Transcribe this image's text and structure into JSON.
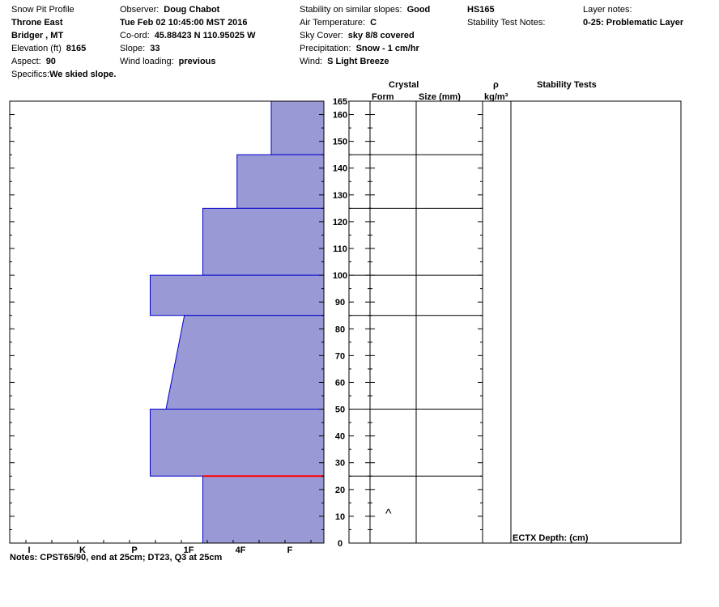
{
  "header": {
    "col1": [
      {
        "label": "Snow Pit Profile",
        "value": ""
      },
      {
        "label": "",
        "value": "Throne East"
      },
      {
        "label": "",
        "value": "Bridger , MT"
      },
      {
        "label": "Elevation (ft)",
        "value": "8165"
      },
      {
        "label": "Aspect:",
        "value": "90"
      },
      {
        "label": "Specifics:",
        "value": "We skied slope."
      }
    ],
    "col2": [
      {
        "label": "Observer:",
        "value": "Doug Chabot"
      },
      {
        "label": "",
        "value": "Tue Feb 02 10:45:00 MST 2016"
      },
      {
        "label": "Co-ord:",
        "value": "45.88423 N 110.95025 W"
      },
      {
        "label": "Slope:",
        "value": "33"
      },
      {
        "label": "Wind loading:",
        "value": "previous"
      }
    ],
    "col3": [
      {
        "label": "Stability on similar slopes:",
        "value": "Good"
      },
      {
        "label": "Air Temperature:",
        "value": "C"
      },
      {
        "label": "Sky Cover:",
        "value": "sky 8/8 covered"
      },
      {
        "label": "Precipitation:",
        "value": "Snow - 1 cm/hr"
      },
      {
        "label": "Wind:",
        "value": "S Light Breeze"
      }
    ],
    "col4": [
      {
        "label": "",
        "value": "HS165"
      },
      {
        "label": "Stability Test Notes:",
        "value": ""
      }
    ],
    "col5": [
      {
        "label": "Layer notes:",
        "value": ""
      },
      {
        "label": "",
        "value": "0-25: Problematic Layer"
      }
    ]
  },
  "columns": {
    "crystal": "Crystal",
    "form": "Form",
    "size": "Size (mm)",
    "rho": "ρ",
    "density_unit": "kg/m³",
    "stability_tests": "Stability Tests"
  },
  "stability_test_entry": "ECTX  Depth: (cm)",
  "crystal_form_symbol": "^",
  "notes": "Notes:  CPST65/90, end at 25cm; DT23, Q3 at 25cm",
  "colors": {
    "hardness_fill": "#9999d6",
    "hardness_edge": "#0000cc",
    "problem_layer": "#ff0000",
    "grid": "#000000"
  },
  "chart_data": {
    "type": "area",
    "title": "",
    "xlabel": "",
    "ylabel": "",
    "y_range": [
      0,
      165
    ],
    "y_ticks": [
      0,
      10,
      20,
      30,
      40,
      50,
      60,
      70,
      80,
      90,
      100,
      110,
      120,
      130,
      140,
      150,
      160,
      165
    ],
    "hardness_scale": [
      "I",
      "K",
      "P",
      "1F",
      "4F",
      "F"
    ],
    "hardness_profile": [
      {
        "bottom": 145,
        "top": 165,
        "hardness_bottom": 1.0,
        "hardness_top": 1.0
      },
      {
        "bottom": 125,
        "top": 145,
        "hardness_bottom": 1.65,
        "hardness_top": 1.65
      },
      {
        "bottom": 100,
        "top": 125,
        "hardness_bottom": 2.3,
        "hardness_top": 2.3
      },
      {
        "bottom": 85,
        "top": 100,
        "hardness_bottom": 3.3,
        "hardness_top": 3.3
      },
      {
        "bottom": 50,
        "top": 85,
        "hardness_bottom": 3.0,
        "hardness_top": 2.65
      },
      {
        "bottom": 25,
        "top": 50,
        "hardness_bottom": 3.3,
        "hardness_top": 3.3
      },
      {
        "bottom": 0,
        "top": 25,
        "hardness_bottom": 2.3,
        "hardness_top": 2.3
      }
    ],
    "layer_boundaries": [
      145,
      125,
      100,
      85,
      50,
      25
    ],
    "problem_layer_depth": 25,
    "crystal_symbol_height": 12
  }
}
